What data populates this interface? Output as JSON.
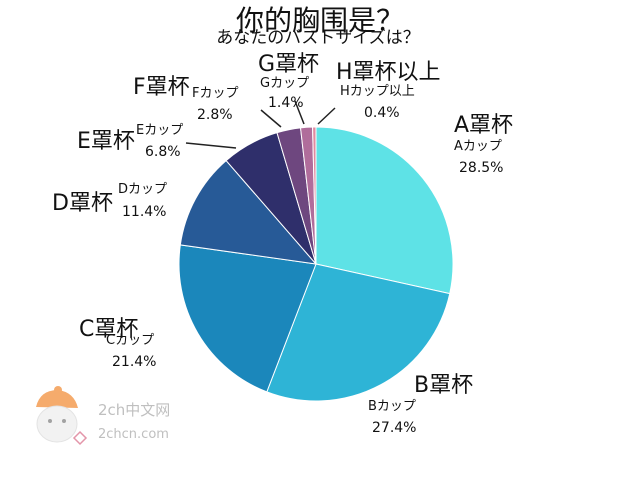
{
  "chart_data": {
    "type": "pie",
    "title": "你的胸围是？",
    "subtitle": "あなたのバストサイズは？",
    "slices": [
      {
        "zh": "A罩杯",
        "jp": "Aカップ",
        "pct": "28.5%",
        "value": 28.5,
        "color": "#5ee2e6"
      },
      {
        "zh": "B罩杯",
        "jp": "Bカップ",
        "pct": "27.4%",
        "value": 27.4,
        "color": "#2eb4d6"
      },
      {
        "zh": "C罩杯",
        "jp": "Cカップ",
        "pct": "21.4%",
        "value": 21.4,
        "color": "#1b87bb"
      },
      {
        "zh": "D罩杯",
        "jp": "Dカップ",
        "pct": "11.4%",
        "value": 11.4,
        "color": "#275a97"
      },
      {
        "zh": "E罩杯",
        "jp": "Eカップ",
        "pct": "6.8%",
        "value": 6.8,
        "color": "#2f2f6b"
      },
      {
        "zh": "F罩杯",
        "jp": "Fカップ",
        "pct": "2.8%",
        "value": 2.8,
        "color": "#6e477f"
      },
      {
        "zh": "G罩杯",
        "jp": "Gカップ",
        "pct": "1.4%",
        "value": 1.4,
        "color": "#b06d9b"
      },
      {
        "zh": "H罩杯以上",
        "jp": "Hカップ以上",
        "pct": "0.4%",
        "value": 0.4,
        "color": "#e08aa0"
      }
    ]
  },
  "watermark": {
    "line1": "2ch中文网",
    "line2": "2chcn.com"
  }
}
